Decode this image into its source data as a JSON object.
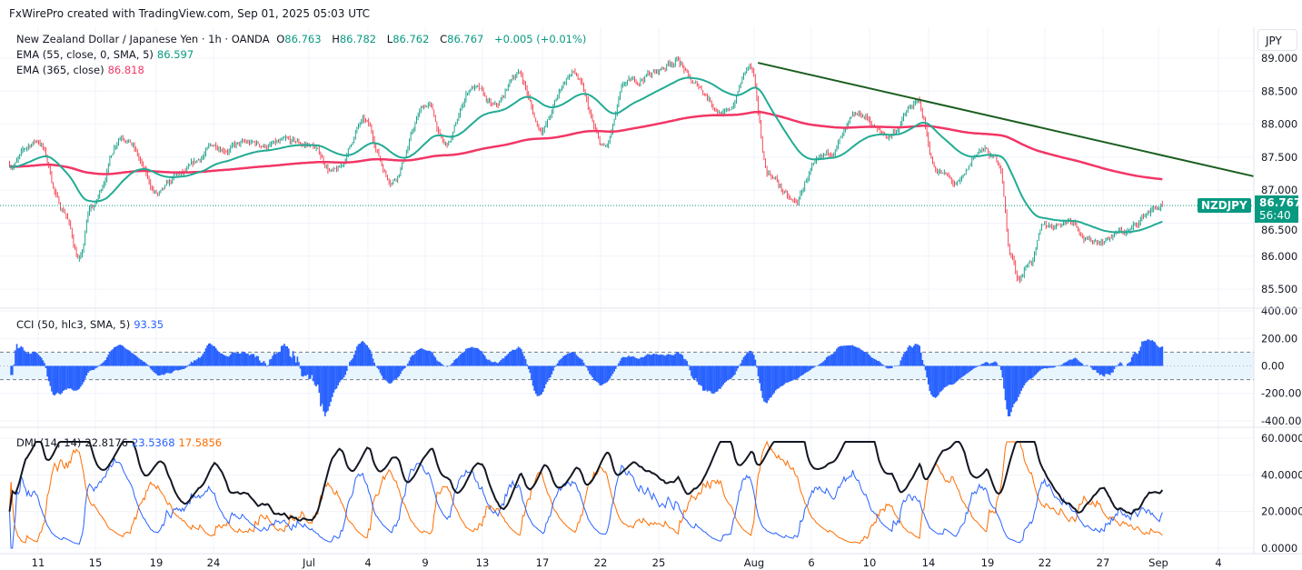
{
  "header": {
    "credit": "FxWirePro created with TradingView.com, Sep 01, 2025 05:03 UTC"
  },
  "legend": {
    "symbol": "New Zealand Dollar / Japanese Yen · 1h · OANDA",
    "open_label": "O",
    "open": "86.763",
    "high_label": "H",
    "high": "86.782",
    "low_label": "L",
    "low": "86.762",
    "close_label": "C",
    "close": "86.767",
    "change": "+0.005 (+0.01%)",
    "ema55_label": "EMA (55, close, 0, SMA, 5)",
    "ema55_value": "86.597",
    "ema365_label": "EMA (365, close)",
    "ema365_value": "86.818",
    "cci_label": "CCI (50, hlc3, SMA, 5)",
    "cci_value": "93.35",
    "dmi_label": "DMI (14, 14)",
    "adx_value": "22.8176",
    "plus_di_value": "23.5368",
    "minus_di_value": "17.5856"
  },
  "price_axis": {
    "currency_button": "JPY",
    "ticker_tag": "NZDJPY",
    "last_price": "86.767",
    "countdown": "56:40"
  },
  "colors": {
    "up": "#089981",
    "down": "#f23645",
    "ema55": "#22ab94",
    "ema365": "#f23665",
    "trendline": "#1b5e20",
    "cci": "#2962ff",
    "adx": "#131722",
    "plus_di": "#2962ff",
    "minus_di": "#ff6d00"
  },
  "chart_data": [
    {
      "type": "candlestick",
      "title": "New Zealand Dollar / Japanese Yen · 1h · OANDA",
      "ylim": [
        85.3,
        89.35
      ],
      "y_ticks": [
        "89.000",
        "88.500",
        "88.000",
        "87.500",
        "87.000",
        "86.500",
        "86.000",
        "85.500"
      ],
      "x_ticks": [
        {
          "label": "11",
          "date": "2025-06-11"
        },
        {
          "label": "15",
          "date": "2025-06-15"
        },
        {
          "label": "19",
          "date": "2025-06-19"
        },
        {
          "label": "24",
          "date": "2025-06-24"
        },
        {
          "label": "Jul",
          "date": "2025-07-01"
        },
        {
          "label": "4",
          "date": "2025-07-04"
        },
        {
          "label": "9",
          "date": "2025-07-09"
        },
        {
          "label": "13",
          "date": "2025-07-13"
        },
        {
          "label": "17",
          "date": "2025-07-17"
        },
        {
          "label": "22",
          "date": "2025-07-22"
        },
        {
          "label": "25",
          "date": "2025-07-25"
        },
        {
          "label": "Aug",
          "date": "2025-08-01"
        },
        {
          "label": "6",
          "date": "2025-08-06"
        },
        {
          "label": "10",
          "date": "2025-08-10"
        },
        {
          "label": "14",
          "date": "2025-08-14"
        },
        {
          "label": "19",
          "date": "2025-08-19"
        },
        {
          "label": "22",
          "date": "2025-08-22"
        },
        {
          "label": "27",
          "date": "2025-08-27"
        },
        {
          "label": "Sep",
          "date": "2025-09-01"
        },
        {
          "label": "4",
          "date": "2025-09-04"
        }
      ],
      "approx_close_path": [
        [
          "2025-06-09T00",
          87.4
        ],
        [
          "2025-06-11T00",
          87.75
        ],
        [
          "2025-06-12T18",
          86.71
        ],
        [
          "2025-06-13T22",
          85.96
        ],
        [
          "2025-06-14T16",
          86.71
        ],
        [
          "2025-06-16T19",
          87.88
        ],
        [
          "2025-06-19T06",
          86.92
        ],
        [
          "2025-06-21T03",
          87.2
        ],
        [
          "2025-06-24T08",
          87.68
        ],
        [
          "2025-06-28T08",
          87.68
        ],
        [
          "2025-07-01T00",
          87.68
        ],
        [
          "2025-07-02T09",
          87.26
        ],
        [
          "2025-07-03T18",
          88.02
        ],
        [
          "2025-07-06T00",
          87.19
        ],
        [
          "2025-07-09T04",
          88.3
        ],
        [
          "2025-07-10T10",
          87.66
        ],
        [
          "2025-07-12T07",
          88.57
        ],
        [
          "2025-07-13T20",
          88.22
        ],
        [
          "2025-07-15T09",
          88.78
        ],
        [
          "2025-07-16T21",
          87.95
        ],
        [
          "2025-07-19T14",
          88.78
        ],
        [
          "2025-07-22T05",
          87.61
        ],
        [
          "2025-07-23T08",
          88.57
        ],
        [
          "2025-07-24T18",
          88.78
        ],
        [
          "2025-07-26T08",
          88.99
        ],
        [
          "2025-07-27T16",
          88.57
        ],
        [
          "2025-07-30T00",
          88.16
        ],
        [
          "2025-07-31T16",
          88.85
        ],
        [
          "2025-08-02T05",
          87.26
        ],
        [
          "2025-08-04T14",
          86.78
        ],
        [
          "2025-08-06T03",
          87.33
        ],
        [
          "2025-08-09T14",
          88.09
        ],
        [
          "2025-08-11T03",
          87.81
        ],
        [
          "2025-08-13T06",
          88.3
        ],
        [
          "2025-08-14T15",
          87.33
        ],
        [
          "2025-08-16T12",
          87.06
        ],
        [
          "2025-08-18T11",
          87.61
        ],
        [
          "2025-08-19T15",
          87.4
        ],
        [
          "2025-08-20T05",
          86.03
        ],
        [
          "2025-08-20T14",
          85.68
        ],
        [
          "2025-08-21T07",
          85.96
        ],
        [
          "2025-08-22T00",
          86.44
        ],
        [
          "2025-08-24T08",
          86.58
        ],
        [
          "2025-08-25T22",
          86.23
        ],
        [
          "2025-08-29T03",
          86.37
        ],
        [
          "2025-08-31T14",
          86.71
        ],
        [
          "2025-09-01T05",
          86.767
        ]
      ],
      "last_price": 86.767,
      "series": [
        {
          "name": "EMA (55, close, 0, SMA, 5)",
          "last": 86.597
        },
        {
          "name": "EMA (365, close)",
          "last": 86.818
        }
      ],
      "trendline": {
        "from": [
          "2025-08-01T08",
          88.93
        ],
        "to": [
          "2025-09-05T18",
          87.21
        ]
      }
    },
    {
      "type": "bar",
      "title": "CCI (50, hlc3, SMA, 5)",
      "ylim": [
        -420,
        420
      ],
      "y_ticks": [
        "400.00",
        "200.00",
        "0.00",
        "-200.00",
        "-400.00"
      ],
      "bands": [
        -100,
        100
      ],
      "last": 93.35
    },
    {
      "type": "line",
      "title": "DMI (14, 14)",
      "ylim": [
        -1,
        60
      ],
      "y_ticks": [
        "60.0000",
        "40.0000",
        "20.0000",
        "0.0000"
      ],
      "series": [
        {
          "name": "ADX",
          "last": 22.8176
        },
        {
          "name": "+DI",
          "last": 23.5368
        },
        {
          "name": "-DI",
          "last": 17.5856
        }
      ]
    }
  ]
}
